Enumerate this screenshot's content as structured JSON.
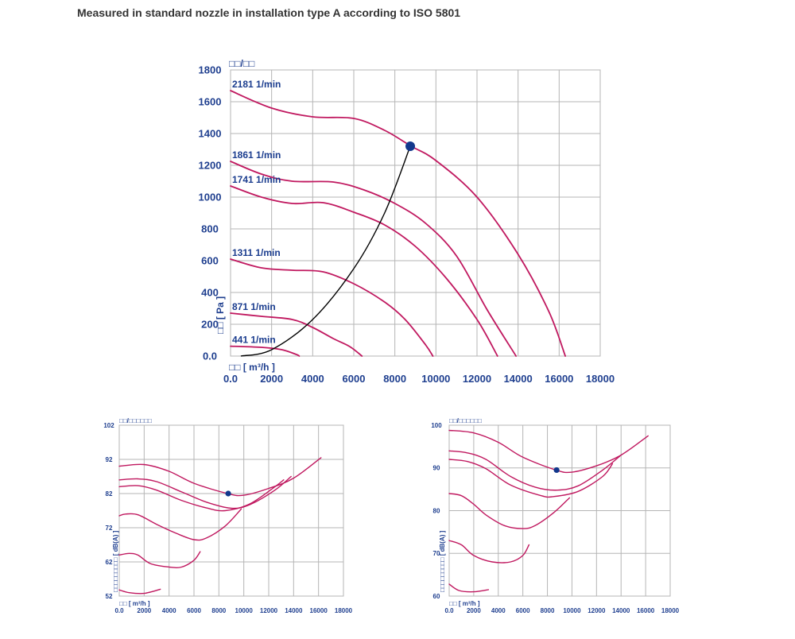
{
  "title": "Measured in standard nozzle in installation type A according to ISO 5801",
  "colors": {
    "curve": "#c0185f",
    "operating_point": "#12388c",
    "system_curve": "#000000",
    "grid": "#b5b5b5",
    "text": "#1f3f8f"
  },
  "chart_data": [
    {
      "type": "line",
      "title": "",
      "ylabel": "□□/□□",
      "ylabel_side": "□□ [ Pa ]",
      "xlabel": "□□ [ m³/h ]",
      "xlim": [
        0,
        18000
      ],
      "ylim": [
        0,
        1800
      ],
      "x_ticks": [
        "0.0",
        "2000",
        "4000",
        "6000",
        "8000",
        "10000",
        "12000",
        "14000",
        "16000",
        "18000"
      ],
      "y_ticks": [
        "0.0",
        "200",
        "400",
        "600",
        "800",
        "1000",
        "1200",
        "1400",
        "1600",
        "1800"
      ],
      "grid": true,
      "series": [
        {
          "name": "2181 1/min",
          "points": [
            [
              0,
              1670
            ],
            [
              2000,
              1560
            ],
            [
              4000,
              1505
            ],
            [
              6000,
              1495
            ],
            [
              7500,
              1420
            ],
            [
              8800,
              1320
            ],
            [
              10000,
              1230
            ],
            [
              12000,
              1000
            ],
            [
              14000,
              640
            ],
            [
              15500,
              280
            ],
            [
              16300,
              0
            ]
          ]
        },
        {
          "name": "1861 1/min",
          "points": [
            [
              0,
              1225
            ],
            [
              1500,
              1145
            ],
            [
              3000,
              1100
            ],
            [
              5000,
              1095
            ],
            [
              6500,
              1045
            ],
            [
              8000,
              960
            ],
            [
              9500,
              835
            ],
            [
              11000,
              630
            ],
            [
              12500,
              290
            ],
            [
              13900,
              0
            ]
          ]
        },
        {
          "name": "1741 1/min",
          "points": [
            [
              0,
              1070
            ],
            [
              1500,
              1000
            ],
            [
              3000,
              960
            ],
            [
              4500,
              965
            ],
            [
              6000,
              905
            ],
            [
              7500,
              825
            ],
            [
              9000,
              690
            ],
            [
              10500,
              490
            ],
            [
              12000,
              230
            ],
            [
              13000,
              0
            ]
          ]
        },
        {
          "name": "1311 1/min",
          "points": [
            [
              0,
              610
            ],
            [
              1500,
              555
            ],
            [
              3000,
              540
            ],
            [
              4500,
              530
            ],
            [
              6000,
              455
            ],
            [
              7500,
              340
            ],
            [
              8500,
              230
            ],
            [
              9500,
              70
            ],
            [
              9850,
              0
            ]
          ]
        },
        {
          "name": "871 1/min",
          "points": [
            [
              0,
              270
            ],
            [
              1500,
              250
            ],
            [
              3000,
              230
            ],
            [
              4000,
              180
            ],
            [
              5000,
              110
            ],
            [
              5800,
              60
            ],
            [
              6400,
              0
            ]
          ]
        },
        {
          "name": "441 1/min",
          "points": [
            [
              0,
              62
            ],
            [
              1500,
              55
            ],
            [
              2500,
              40
            ],
            [
              3200,
              10
            ],
            [
              3350,
              0
            ]
          ]
        }
      ],
      "system_curve": [
        [
          500,
          0
        ],
        [
          2000,
          40
        ],
        [
          4000,
          230
        ],
        [
          6000,
          550
        ],
        [
          7500,
          900
        ],
        [
          8750,
          1320
        ]
      ],
      "operating_point": [
        8750,
        1320
      ]
    },
    {
      "type": "line",
      "title": "",
      "ylabel": "□□/□□□□□□",
      "ylabel_side": "□□□□□□□□□ [ dB(A) ]",
      "xlabel": "□□ [ m³/h ]",
      "xlim": [
        0,
        18000
      ],
      "ylim": [
        52,
        102
      ],
      "x_ticks": [
        "0.0",
        "2000",
        "4000",
        "6000",
        "8000",
        "10000",
        "12000",
        "14000",
        "16000",
        "18000"
      ],
      "y_ticks": [
        "52",
        "62",
        "72",
        "82",
        "92",
        "102"
      ],
      "grid": true,
      "series": [
        {
          "name": "2181 1/min",
          "points": [
            [
              0,
              90
            ],
            [
              2000,
              90.5
            ],
            [
              4000,
              88.5
            ],
            [
              6000,
              85
            ],
            [
              8700,
              82
            ],
            [
              10000,
              81.5
            ],
            [
              12000,
              83.5
            ],
            [
              14000,
              86.5
            ],
            [
              16200,
              92.5
            ]
          ]
        },
        {
          "name": "1861 1/min",
          "points": [
            [
              0,
              86
            ],
            [
              1500,
              86.3
            ],
            [
              3000,
              85.5
            ],
            [
              5000,
              82.5
            ],
            [
              7000,
              79.5
            ],
            [
              9000,
              77.7
            ],
            [
              10500,
              78.8
            ],
            [
              12500,
              83
            ],
            [
              13800,
              87
            ]
          ]
        },
        {
          "name": "1741 1/min",
          "points": [
            [
              0,
              84
            ],
            [
              1500,
              84.3
            ],
            [
              3000,
              83
            ],
            [
              5000,
              80
            ],
            [
              7000,
              77.8
            ],
            [
              8500,
              77
            ],
            [
              10500,
              79
            ],
            [
              12500,
              84
            ],
            [
              13200,
              86
            ]
          ]
        },
        {
          "name": "1311 1/min",
          "points": [
            [
              0,
              75.5
            ],
            [
              500,
              76
            ],
            [
              1500,
              75.8
            ],
            [
              3000,
              73
            ],
            [
              4500,
              70.5
            ],
            [
              6000,
              68.5
            ],
            [
              7000,
              69
            ],
            [
              8500,
              72.5
            ],
            [
              9800,
              77.5
            ]
          ]
        },
        {
          "name": "871 1/min",
          "points": [
            [
              0,
              64
            ],
            [
              800,
              64.5
            ],
            [
              1500,
              64
            ],
            [
              2500,
              61.5
            ],
            [
              4000,
              60.5
            ],
            [
              5000,
              60.5
            ],
            [
              6000,
              62.5
            ],
            [
              6500,
              65
            ]
          ]
        },
        {
          "name": "441 1/min",
          "points": [
            [
              0,
              53.8
            ],
            [
              800,
              53
            ],
            [
              2000,
              52.8
            ],
            [
              3300,
              54
            ]
          ]
        }
      ],
      "operating_point": [
        8750,
        82
      ]
    },
    {
      "type": "line",
      "title": "",
      "ylabel": "□□/□□□□□□",
      "ylabel_side": "□□□□□□□□□ [ dB(A) ]",
      "xlabel": "□□ [ m³/h ]",
      "xlim": [
        0,
        18000
      ],
      "ylim": [
        60,
        100
      ],
      "x_ticks": [
        "0.0",
        "2000",
        "4000",
        "6000",
        "8000",
        "10000",
        "12000",
        "14000",
        "16000",
        "18000"
      ],
      "y_ticks": [
        "60",
        "70",
        "80",
        "90",
        "100"
      ],
      "grid": true,
      "series": [
        {
          "name": "2181 1/min",
          "points": [
            [
              0,
              98.8
            ],
            [
              2000,
              98.2
            ],
            [
              4000,
              96
            ],
            [
              6000,
              92.5
            ],
            [
              8700,
              89.5
            ],
            [
              10000,
              89
            ],
            [
              12000,
              90.5
            ],
            [
              14000,
              93
            ],
            [
              16200,
              97.5
            ]
          ]
        },
        {
          "name": "1861 1/min",
          "points": [
            [
              0,
              94
            ],
            [
              1500,
              93.5
            ],
            [
              3000,
              92
            ],
            [
              5000,
              88
            ],
            [
              7000,
              85.5
            ],
            [
              8800,
              84.8
            ],
            [
              10500,
              85.8
            ],
            [
              12500,
              89.5
            ],
            [
              14000,
              93
            ]
          ]
        },
        {
          "name": "1741 1/min",
          "points": [
            [
              0,
              92
            ],
            [
              1500,
              91.5
            ],
            [
              3000,
              89.8
            ],
            [
              5000,
              86
            ],
            [
              7500,
              83.5
            ],
            [
              8500,
              83.3
            ],
            [
              10500,
              84.5
            ],
            [
              12500,
              88
            ],
            [
              13300,
              91
            ]
          ]
        },
        {
          "name": "1311 1/min",
          "points": [
            [
              0,
              84
            ],
            [
              1000,
              83.5
            ],
            [
              2000,
              81.5
            ],
            [
              3000,
              79
            ],
            [
              4500,
              76.5
            ],
            [
              6000,
              75.8
            ],
            [
              7000,
              76.5
            ],
            [
              8500,
              79.5
            ],
            [
              9800,
              83
            ]
          ]
        },
        {
          "name": "871 1/min",
          "points": [
            [
              0,
              73
            ],
            [
              1000,
              72
            ],
            [
              2000,
              69.5
            ],
            [
              3500,
              68
            ],
            [
              5000,
              68
            ],
            [
              6000,
              69.5
            ],
            [
              6500,
              72
            ]
          ]
        },
        {
          "name": "441 1/min",
          "points": [
            [
              0,
              62.8
            ],
            [
              800,
              61.3
            ],
            [
              2000,
              61
            ],
            [
              3200,
              61.5
            ]
          ]
        }
      ],
      "operating_point": [
        8750,
        89.5
      ]
    }
  ]
}
